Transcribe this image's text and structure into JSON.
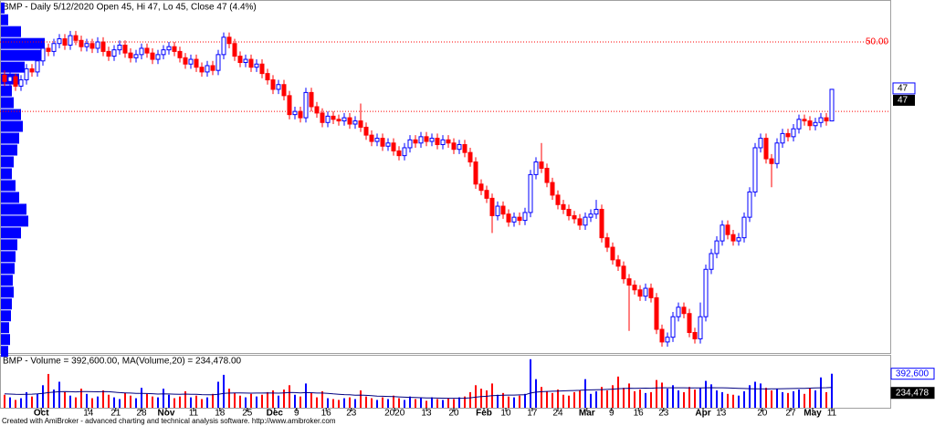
{
  "chart_data": [
    {
      "type": "candlestick",
      "title": "BMP - Daily 5/12/2020 Open 45, Hi 47, Lo 45, Close 47 (4.4%)",
      "up_color": "#0000ff",
      "down_color": "#ff0000",
      "xlim": [
        -0.833,
        161.667
      ],
      "ylim": [
        30.3,
        52.6
      ],
      "yticks": [
        {
          "value": 50,
          "label": "50.00"
        }
      ],
      "hlines": [
        45.6
      ],
      "hline_color": "#ff0000",
      "open": [
        47.9,
        47.5,
        47.8,
        47.2,
        47.6,
        48.3,
        48.1,
        48.8,
        49.6,
        49.4,
        49.9,
        50.2,
        49.8,
        50.4,
        50.1,
        49.7,
        49.9,
        49.6,
        50.0,
        49.4,
        49.1,
        49.5,
        49.8,
        49.3,
        49.0,
        49.2,
        49.6,
        49.3,
        48.9,
        49.2,
        49.5,
        49.7,
        49.4,
        49.0,
        48.6,
        48.9,
        48.4,
        48.1,
        48.5,
        48.2,
        49.2,
        50.3,
        49.9,
        49.1,
        48.7,
        48.9,
        48.4,
        48.6,
        48.0,
        47.6,
        47.0,
        47.3,
        46.6,
        45.4,
        45.6,
        45.2,
        46.8,
        45.9,
        45.5,
        44.9,
        45.3,
        45.1,
        45.0,
        45.2,
        44.8,
        45.0,
        44.6,
        44.1,
        43.7,
        43.9,
        43.4,
        43.6,
        43.1,
        42.8,
        43.3,
        43.8,
        43.6,
        44.0,
        43.7,
        43.9,
        43.5,
        43.8,
        43.6,
        43.2,
        43.5,
        43.0,
        42.4,
        41.0,
        40.6,
        40.1,
        39.0,
        39.6,
        39.1,
        38.6,
        38.9,
        38.7,
        39.2,
        41.6,
        42.4,
        42.0,
        41.1,
        40.3,
        39.7,
        39.4,
        39.0,
        38.8,
        38.4,
        38.9,
        39.1,
        39.4,
        37.6,
        37.0,
        36.2,
        35.8,
        35.0,
        34.6,
        34.3,
        33.9,
        34.4,
        33.8,
        31.8,
        31.0,
        31.3,
        32.6,
        33.2,
        32.8,
        31.6,
        31.2,
        32.6,
        35.6,
        36.6,
        37.4,
        38.4,
        37.8,
        37.4,
        37.6,
        38.9,
        40.5,
        43.3,
        43.9,
        42.6,
        42.3,
        43.6,
        44.2,
        44.0,
        44.5,
        45.1,
        45.0,
        44.7,
        44.9,
        45.2,
        45
      ],
      "high": [
        48.2,
        48.1,
        48.0,
        47.9,
        48.6,
        48.6,
        49.1,
        49.9,
        49.9,
        50.2,
        50.5,
        50.5,
        50.7,
        50.7,
        50.4,
        50.2,
        50.2,
        50.3,
        50.3,
        49.7,
        49.8,
        50.1,
        50.1,
        49.6,
        49.5,
        49.9,
        49.9,
        49.6,
        49.5,
        49.8,
        50.0,
        50.0,
        49.7,
        49.3,
        49.2,
        49.2,
        48.7,
        48.8,
        48.8,
        49.5,
        50.6,
        50.6,
        50.2,
        49.4,
        49.2,
        49.2,
        48.9,
        48.9,
        48.3,
        47.9,
        47.6,
        47.6,
        46.9,
        45.9,
        45.9,
        47.1,
        47.1,
        46.2,
        45.8,
        45.6,
        45.6,
        45.4,
        45.5,
        45.5,
        45.3,
        46.1,
        44.9,
        44.4,
        44.2,
        44.2,
        43.9,
        43.9,
        43.4,
        43.6,
        44.1,
        44.1,
        44.3,
        44.3,
        44.2,
        44.2,
        44.1,
        44.1,
        43.9,
        43.8,
        43.8,
        43.3,
        42.7,
        41.3,
        40.9,
        40.4,
        39.9,
        39.9,
        39.4,
        39.2,
        39.2,
        39.5,
        41.9,
        42.7,
        43.6,
        42.3,
        41.4,
        40.6,
        40.0,
        39.7,
        39.3,
        39.1,
        39.2,
        39.4,
        40.0,
        39.7,
        37.9,
        37.3,
        36.5,
        36.1,
        35.3,
        34.9,
        34.6,
        34.7,
        34.7,
        34.1,
        32.1,
        31.6,
        32.9,
        33.5,
        33.5,
        33.1,
        31.9,
        33.5,
        35.9,
        36.9,
        37.7,
        38.7,
        38.7,
        38.1,
        37.9,
        39.2,
        40.8,
        43.6,
        44.2,
        44.2,
        42.9,
        43.9,
        44.5,
        44.5,
        44.8,
        45.4,
        45.4,
        45.3,
        45.2,
        45.5,
        45.5,
        47
      ],
      "low": [
        47.2,
        47.2,
        46.9,
        46.9,
        47.3,
        47.8,
        47.8,
        48.5,
        49.1,
        49.1,
        49.6,
        49.5,
        49.5,
        49.8,
        49.4,
        49.4,
        49.3,
        49.3,
        49.1,
        48.8,
        48.8,
        49.2,
        49.0,
        48.7,
        48.7,
        48.9,
        49.0,
        48.6,
        48.6,
        48.9,
        49.2,
        49.1,
        48.7,
        48.3,
        48.3,
        48.1,
        47.8,
        47.8,
        47.9,
        47.9,
        48.9,
        49.6,
        48.8,
        48.4,
        48.4,
        48.1,
        48.1,
        47.7,
        47.3,
        46.7,
        46.7,
        46.3,
        45.1,
        45.1,
        44.9,
        44.9,
        45.6,
        45.2,
        44.6,
        44.6,
        44.8,
        44.7,
        44.7,
        44.5,
        44.5,
        44.3,
        43.8,
        43.4,
        43.4,
        43.1,
        43.1,
        42.8,
        42.5,
        42.5,
        43.0,
        43.3,
        43.3,
        43.4,
        43.4,
        43.2,
        43.2,
        43.3,
        42.9,
        42.9,
        42.7,
        42.1,
        40.7,
        40.3,
        39.8,
        37.9,
        38.7,
        38.8,
        38.3,
        38.3,
        38.4,
        38.4,
        38.9,
        41.3,
        41.7,
        40.8,
        40.0,
        39.4,
        39.1,
        38.7,
        38.5,
        38.1,
        38.1,
        38.6,
        38.8,
        37.3,
        36.7,
        35.9,
        35.5,
        34.7,
        31.7,
        34.0,
        33.6,
        33.6,
        33.5,
        31.5,
        30.7,
        30.7,
        31.0,
        32.3,
        32.5,
        31.3,
        30.9,
        30.9,
        32.3,
        35.3,
        36.3,
        37.1,
        37.5,
        37.1,
        37.1,
        37.3,
        38.6,
        40.2,
        43.0,
        42.3,
        40.8,
        42.0,
        43.3,
        43.7,
        43.7,
        44.2,
        44.7,
        44.4,
        44.4,
        44.6,
        44.7,
        45
      ],
      "close": [
        47.5,
        47.8,
        47.2,
        47.6,
        48.3,
        48.1,
        48.8,
        49.6,
        49.4,
        49.9,
        50.2,
        49.8,
        50.4,
        50.1,
        49.7,
        49.9,
        49.6,
        50.0,
        49.4,
        49.1,
        49.5,
        49.8,
        49.3,
        49.0,
        49.2,
        49.6,
        49.3,
        48.9,
        49.2,
        49.5,
        49.7,
        49.4,
        49.0,
        48.6,
        48.9,
        48.4,
        48.1,
        48.5,
        48.2,
        49.2,
        50.3,
        49.9,
        49.1,
        48.7,
        48.9,
        48.4,
        48.6,
        48.0,
        47.6,
        47.0,
        47.3,
        46.6,
        45.4,
        45.6,
        45.2,
        46.8,
        45.9,
        45.5,
        44.9,
        45.3,
        45.1,
        45.0,
        45.2,
        44.8,
        45.0,
        44.6,
        44.1,
        43.7,
        43.9,
        43.4,
        43.6,
        43.1,
        42.8,
        43.3,
        43.8,
        43.6,
        44.0,
        43.7,
        43.9,
        43.5,
        43.8,
        43.6,
        43.2,
        43.5,
        43.0,
        42.4,
        41.0,
        40.6,
        40.1,
        39.0,
        39.6,
        39.1,
        38.6,
        38.9,
        38.7,
        39.2,
        41.6,
        42.4,
        42.0,
        41.1,
        40.3,
        39.7,
        39.4,
        39.0,
        38.8,
        38.4,
        38.9,
        39.1,
        39.4,
        37.6,
        37.0,
        36.2,
        35.8,
        35.0,
        34.6,
        34.3,
        33.9,
        34.4,
        33.8,
        31.8,
        31.0,
        31.3,
        32.6,
        33.2,
        32.8,
        31.6,
        31.2,
        32.6,
        35.6,
        36.6,
        37.4,
        38.4,
        37.8,
        37.4,
        37.6,
        38.9,
        40.5,
        43.3,
        43.9,
        42.6,
        42.3,
        43.6,
        44.2,
        44.0,
        44.5,
        45.1,
        45.0,
        44.7,
        44.9,
        45.2,
        45.0,
        47
      ],
      "volume_profile": {
        "color": "#0000ff",
        "xlim": [
          0,
          50
        ],
        "bins": [
          30,
          30.75,
          31.5,
          32.25,
          33,
          33.75,
          34.5,
          35.25,
          36,
          36.75,
          37.5,
          38.25,
          39,
          39.75,
          40.5,
          41.25,
          42,
          42.75,
          43.5,
          44.25,
          45,
          45.75,
          46.5,
          47.25,
          48,
          48.75,
          49.5,
          50.25,
          51,
          51.75,
          52.5
        ],
        "values": [
          8,
          10,
          9,
          11,
          12,
          14,
          13,
          15,
          16,
          18,
          22,
          30,
          28,
          20,
          16,
          12,
          14,
          18,
          20,
          24,
          22,
          14,
          12,
          20,
          26,
          46,
          48,
          22,
          8,
          4
        ]
      }
    },
    {
      "type": "volume",
      "title": "BMP - Volume = 392,600.00, MA(Volume,20) = 234,478.00",
      "footer": "Created with AmiBroker - advanced charting and technical analysis software. http://www.amibroker.com",
      "xlim": [
        -0.833,
        161.667
      ],
      "ylim": [
        0,
        600000
      ],
      "xticks": [
        {
          "value": 6.7,
          "label": "Oct"
        },
        {
          "value": 15.3,
          "label": "14"
        },
        {
          "value": 20.3,
          "label": "21"
        },
        {
          "value": 25,
          "label": "28"
        },
        {
          "value": 29.5,
          "label": "Nov"
        },
        {
          "value": 34.5,
          "label": "11"
        },
        {
          "value": 39.3,
          "label": "18"
        },
        {
          "value": 44.3,
          "label": "25"
        },
        {
          "value": 49.3,
          "label": "Dec"
        },
        {
          "value": 53.3,
          "label": "9"
        },
        {
          "value": 58.7,
          "label": "16"
        },
        {
          "value": 63.3,
          "label": "23"
        },
        {
          "value": 71.2,
          "label": "2020"
        },
        {
          "value": 77,
          "label": "13"
        },
        {
          "value": 82,
          "label": "20"
        },
        {
          "value": 87.5,
          "label": "Feb"
        },
        {
          "value": 91.5,
          "label": "10"
        },
        {
          "value": 96.3,
          "label": "17"
        },
        {
          "value": 101,
          "label": "24"
        },
        {
          "value": 106.3,
          "label": "Mar"
        },
        {
          "value": 110.8,
          "label": "9"
        },
        {
          "value": 115.7,
          "label": "16"
        },
        {
          "value": 120.3,
          "label": "23"
        },
        {
          "value": 127.5,
          "label": "Apr"
        },
        {
          "value": 130.8,
          "label": "13"
        },
        {
          "value": 138.3,
          "label": "20"
        },
        {
          "value": 143.5,
          "label": "27"
        },
        {
          "value": 147.5,
          "label": "May"
        },
        {
          "value": 151,
          "label": "11"
        }
      ],
      "series": [
        {
          "name": "Volume",
          "color": "#0000ff",
          "down_color": "#ff0000",
          "values": [
            150000,
            120000,
            90000,
            110000,
            180000,
            130000,
            160000,
            260000,
            390000,
            210000,
            300000,
            180000,
            140000,
            120000,
            220000,
            160000,
            110000,
            130000,
            200000,
            150000,
            120000,
            100000,
            170000,
            140000,
            110000,
            230000,
            160000,
            130000,
            120000,
            220000,
            150000,
            110000,
            130000,
            190000,
            120000,
            140000,
            100000,
            120000,
            160000,
            300000,
            380000,
            220000,
            170000,
            140000,
            120000,
            160000,
            130000,
            150000,
            180000,
            200000,
            140000,
            210000,
            260000,
            150000,
            130000,
            280000,
            170000,
            120000,
            190000,
            110000,
            100000,
            90000,
            110000,
            120000,
            100000,
            200000,
            130000,
            110000,
            90000,
            120000,
            100000,
            140000,
            110000,
            90000,
            130000,
            100000,
            110000,
            80000,
            120000,
            100000,
            90000,
            110000,
            100000,
            120000,
            130000,
            180000,
            260000,
            220000,
            200000,
            280000,
            150000,
            170000,
            130000,
            120000,
            140000,
            160000,
            560000,
            330000,
            240000,
            190000,
            170000,
            210000,
            150000,
            140000,
            180000,
            200000,
            330000,
            160000,
            190000,
            240000,
            200000,
            260000,
            360000,
            230000,
            280000,
            190000,
            210000,
            170000,
            180000,
            320000,
            290000,
            220000,
            260000,
            200000,
            180000,
            240000,
            210000,
            230000,
            310000,
            270000,
            200000,
            180000,
            160000,
            150000,
            140000,
            190000,
            260000,
            300000,
            280000,
            230000,
            200000,
            220000,
            180000,
            170000,
            190000,
            210000,
            160000,
            230000,
            200000,
            350000,
            180000,
            392600
          ],
          "last_label": "392,600"
        },
        {
          "name": "MA(Volume,20)",
          "color": "#000080",
          "values": [
            160000,
            158000,
            155000,
            154000,
            156000,
            157000,
            160000,
            165000,
            175000,
            180000,
            185000,
            186000,
            185000,
            183000,
            186000,
            187000,
            185000,
            184000,
            186000,
            185000,
            180000,
            175000,
            172000,
            170000,
            166000,
            165000,
            164000,
            162000,
            158000,
            160000,
            159000,
            157000,
            156000,
            158000,
            156000,
            155000,
            152000,
            151000,
            150000,
            155000,
            165000,
            170000,
            171000,
            172000,
            170000,
            168000,
            169000,
            170000,
            172000,
            170000,
            168000,
            172000,
            176000,
            175000,
            172000,
            175000,
            174000,
            170000,
            170000,
            166000,
            160000,
            156000,
            152000,
            150000,
            145000,
            146000,
            143000,
            140000,
            135000,
            133000,
            130000,
            128000,
            125000,
            122000,
            120000,
            118000,
            116000,
            114000,
            113000,
            112000,
            111000,
            110000,
            109000,
            110000,
            111000,
            115000,
            122000,
            128000,
            133000,
            140000,
            142000,
            145000,
            146000,
            146000,
            148000,
            150000,
            170000,
            180000,
            185000,
            188000,
            190000,
            193000,
            195000,
            197000,
            199000,
            201000,
            205000,
            206000,
            208000,
            210000,
            212000,
            215000,
            220000,
            222000,
            225000,
            224000,
            225000,
            226000,
            225000,
            228000,
            230000,
            231000,
            230000,
            231000,
            230000,
            229000,
            228000,
            229000,
            231000,
            232000,
            231000,
            230000,
            228000,
            226000,
            224000,
            222000,
            220000,
            219000,
            218000,
            217000,
            218000,
            219000,
            220000,
            221000,
            222000,
            223000,
            224000,
            226000,
            228000,
            231000,
            232000,
            234478
          ],
          "last_label": "234,478"
        }
      ]
    }
  ]
}
